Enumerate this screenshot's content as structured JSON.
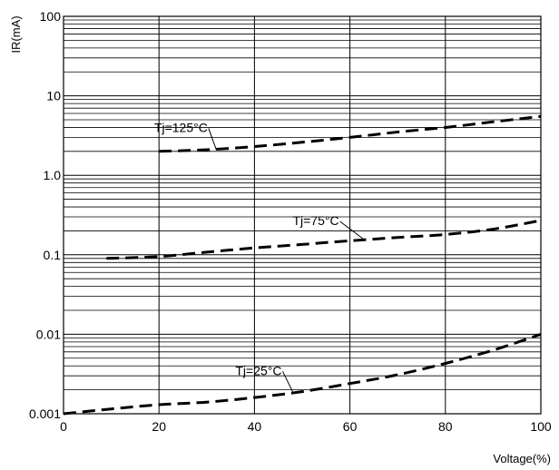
{
  "chart_data": {
    "type": "line",
    "title": "",
    "xlabel": "Voltage(%)",
    "ylabel": "IR(mA)",
    "xlim": [
      0,
      100
    ],
    "ylim": [
      0.001,
      100
    ],
    "yscale": "log",
    "grid": true,
    "x_ticks": [
      "0",
      "20",
      "40",
      "60",
      "80",
      "100"
    ],
    "y_ticks": [
      "0.001",
      "0.01",
      "0.1",
      "1.0",
      "10",
      "100"
    ],
    "line_style": "dashed",
    "line_color": "#000000",
    "series": [
      {
        "name": "Tj=125°C",
        "x": [
          20,
          30,
          40,
          50,
          60,
          70,
          80,
          90,
          100
        ],
        "y": [
          2.0,
          2.1,
          2.3,
          2.6,
          3.0,
          3.5,
          4.0,
          4.7,
          5.5
        ]
      },
      {
        "name": "Tj=75°C",
        "x": [
          9,
          20,
          30,
          40,
          50,
          60,
          70,
          80,
          90,
          100
        ],
        "y": [
          0.09,
          0.095,
          0.108,
          0.122,
          0.135,
          0.15,
          0.165,
          0.18,
          0.21,
          0.27
        ]
      },
      {
        "name": "Tj=25°C",
        "x": [
          0,
          10,
          20,
          30,
          40,
          50,
          60,
          70,
          80,
          90,
          100
        ],
        "y": [
          0.001,
          0.00115,
          0.0013,
          0.0014,
          0.0016,
          0.0019,
          0.0024,
          0.0031,
          0.0043,
          0.0063,
          0.01
        ]
      }
    ],
    "annotations": [
      {
        "series": "Tj=125°C",
        "text": "Tj=125°C",
        "label_x": 19,
        "label_y": 4.0,
        "point_x": 32,
        "point_y": 2.1
      },
      {
        "series": "Tj=75°C",
        "text": "Tj=75°C",
        "label_x": 48,
        "label_y": 0.27,
        "point_x": 63,
        "point_y": 0.155
      },
      {
        "series": "Tj=25°C",
        "text": "Tj=25°C",
        "label_x": 36,
        "label_y": 0.0035,
        "point_x": 48,
        "point_y": 0.0019
      }
    ]
  }
}
